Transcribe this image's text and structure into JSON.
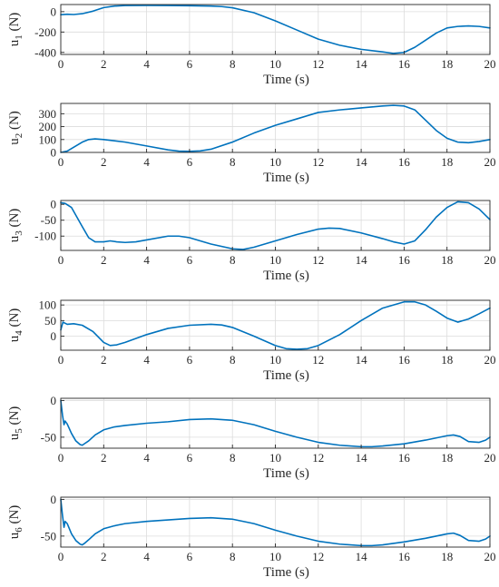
{
  "chart_data": [
    {
      "type": "line",
      "ylabel_main": "u",
      "ylabel_sub": "1",
      "ylabel_unit": " (N)",
      "xlabel": "Time (s)",
      "xlim": [
        0,
        20
      ],
      "ylim": [
        -420,
        70
      ],
      "xticks": [
        0,
        2,
        4,
        6,
        8,
        10,
        12,
        14,
        16,
        18,
        20
      ],
      "yticks": [
        -400,
        -200,
        0
      ],
      "x": [
        0,
        0.3,
        0.6,
        1.0,
        1.5,
        2.0,
        2.5,
        3.0,
        4.0,
        5.0,
        6.0,
        7.0,
        7.5,
        8.0,
        9.0,
        10.0,
        11.0,
        12.0,
        13.0,
        14.0,
        15.0,
        15.5,
        16.0,
        16.5,
        17.0,
        17.5,
        18.0,
        18.5,
        19.0,
        19.5,
        20.0
      ],
      "y": [
        -30,
        -25,
        -28,
        -20,
        5,
        40,
        55,
        60,
        62,
        60,
        58,
        55,
        50,
        38,
        -10,
        -90,
        -180,
        -270,
        -330,
        -370,
        -395,
        -410,
        -400,
        -350,
        -280,
        -210,
        -160,
        -145,
        -140,
        -145,
        -160
      ]
    },
    {
      "type": "line",
      "ylabel_main": "u",
      "ylabel_sub": "2",
      "ylabel_unit": " (N)",
      "xlabel": "Time (s)",
      "xlim": [
        0,
        20
      ],
      "ylim": [
        0,
        380
      ],
      "xticks": [
        0,
        2,
        4,
        6,
        8,
        10,
        12,
        14,
        16,
        18,
        20
      ],
      "yticks": [
        0,
        100,
        200,
        300
      ],
      "x": [
        0,
        0.3,
        0.6,
        1.0,
        1.3,
        1.6,
        2.0,
        2.5,
        3.0,
        4.0,
        5.0,
        5.5,
        6.0,
        6.5,
        7.0,
        8.0,
        9.0,
        10.0,
        11.0,
        12.0,
        13.0,
        14.0,
        15.0,
        15.5,
        16.0,
        16.5,
        17.0,
        17.5,
        18.0,
        18.5,
        19.0,
        19.5,
        20.0
      ],
      "y": [
        0,
        10,
        40,
        80,
        100,
        105,
        100,
        90,
        80,
        50,
        20,
        10,
        8,
        12,
        25,
        80,
        150,
        210,
        260,
        310,
        330,
        345,
        360,
        365,
        360,
        330,
        250,
        170,
        110,
        80,
        75,
        85,
        100
      ]
    },
    {
      "type": "line",
      "ylabel_main": "u",
      "ylabel_sub": "3",
      "ylabel_unit": " (N)",
      "xlabel": "Time (s)",
      "xlim": [
        0,
        20
      ],
      "ylim": [
        -145,
        12
      ],
      "xticks": [
        0,
        2,
        4,
        6,
        8,
        10,
        12,
        14,
        16,
        18,
        20
      ],
      "yticks": [
        -100,
        -50,
        0
      ],
      "x": [
        0,
        0.2,
        0.5,
        1.0,
        1.3,
        1.6,
        2.0,
        2.3,
        2.6,
        3.0,
        3.5,
        4.0,
        5.0,
        5.5,
        6.0,
        7.0,
        8.0,
        8.5,
        9.0,
        10.0,
        11.0,
        12.0,
        12.5,
        13.0,
        14.0,
        15.0,
        15.5,
        16.0,
        16.5,
        17.0,
        17.5,
        18.0,
        18.5,
        19.0,
        19.5,
        20.0
      ],
      "y": [
        5,
        3,
        -10,
        -70,
        -105,
        -118,
        -118,
        -115,
        -118,
        -120,
        -118,
        -112,
        -100,
        -100,
        -105,
        -125,
        -140,
        -142,
        -135,
        -115,
        -95,
        -78,
        -75,
        -76,
        -90,
        -108,
        -118,
        -125,
        -115,
        -80,
        -40,
        -10,
        8,
        5,
        -15,
        -48
      ]
    },
    {
      "type": "line",
      "ylabel_main": "u",
      "ylabel_sub": "4",
      "ylabel_unit": " (N)",
      "xlabel": "Time (s)",
      "xlim": [
        0,
        20
      ],
      "ylim": [
        -45,
        115
      ],
      "xticks": [
        0,
        2,
        4,
        6,
        8,
        10,
        12,
        14,
        16,
        18,
        20
      ],
      "yticks": [
        0,
        50,
        100
      ],
      "x": [
        0,
        0.1,
        0.3,
        0.6,
        1.0,
        1.5,
        2.0,
        2.3,
        2.6,
        3.0,
        4.0,
        5.0,
        6.0,
        7.0,
        7.5,
        8.0,
        9.0,
        10.0,
        10.5,
        11.0,
        11.5,
        12.0,
        13.0,
        14.0,
        15.0,
        16.0,
        16.5,
        17.0,
        17.5,
        18.0,
        18.5,
        19.0,
        19.5,
        20.0
      ],
      "y": [
        20,
        45,
        38,
        40,
        35,
        15,
        -20,
        -30,
        -28,
        -20,
        5,
        25,
        35,
        38,
        36,
        28,
        0,
        -30,
        -40,
        -42,
        -40,
        -30,
        5,
        50,
        90,
        110,
        110,
        100,
        80,
        58,
        45,
        55,
        72,
        90
      ]
    },
    {
      "type": "line",
      "ylabel_main": "u",
      "ylabel_sub": "5",
      "ylabel_unit": " (N)",
      "xlabel": "Time (s)",
      "xlim": [
        0,
        20
      ],
      "ylim": [
        -65,
        3
      ],
      "xticks": [
        0,
        2,
        4,
        6,
        8,
        10,
        12,
        14,
        16,
        18,
        20
      ],
      "yticks": [
        -50,
        0
      ],
      "x": [
        0,
        0.08,
        0.15,
        0.2,
        0.3,
        0.5,
        0.7,
        0.9,
        1.0,
        1.1,
        1.3,
        1.6,
        2.0,
        2.5,
        3.0,
        4.0,
        5.0,
        6.0,
        7.0,
        8.0,
        9.0,
        10.0,
        11.0,
        12.0,
        13.0,
        14.0,
        14.5,
        15.0,
        16.0,
        17.0,
        18.0,
        18.3,
        18.6,
        19.0,
        19.5,
        19.8,
        20.0
      ],
      "y": [
        0,
        -20,
        -33,
        -28,
        -32,
        -45,
        -55,
        -60,
        -61,
        -59,
        -55,
        -47,
        -40,
        -36,
        -34,
        -31,
        -29,
        -26,
        -25,
        -27,
        -33,
        -42,
        -50,
        -57,
        -61,
        -63,
        -63,
        -62,
        -59,
        -54,
        -48,
        -47,
        -49,
        -56,
        -57,
        -54,
        -50
      ]
    },
    {
      "type": "line",
      "ylabel_main": "u",
      "ylabel_sub": "6",
      "ylabel_unit": " (N)",
      "xlabel": "Time (s)",
      "xlim": [
        0,
        20
      ],
      "ylim": [
        -65,
        3
      ],
      "xticks": [
        0,
        2,
        4,
        6,
        8,
        10,
        12,
        14,
        16,
        18,
        20
      ],
      "yticks": [
        -50,
        0
      ],
      "x": [
        0,
        0.08,
        0.15,
        0.2,
        0.3,
        0.5,
        0.7,
        0.9,
        1.0,
        1.1,
        1.3,
        1.6,
        2.0,
        2.5,
        3.0,
        4.0,
        5.0,
        6.0,
        7.0,
        8.0,
        9.0,
        10.0,
        11.0,
        12.0,
        13.0,
        14.0,
        14.5,
        15.0,
        16.0,
        17.0,
        18.0,
        18.3,
        18.6,
        19.0,
        19.5,
        19.8,
        20.0
      ],
      "y": [
        0,
        -22,
        -38,
        -30,
        -33,
        -47,
        -56,
        -61,
        -62,
        -60,
        -55,
        -47,
        -40,
        -36,
        -33,
        -30,
        -28,
        -26,
        -25,
        -27,
        -33,
        -42,
        -50,
        -57,
        -61,
        -63,
        -63,
        -62,
        -58,
        -53,
        -47,
        -46,
        -49,
        -56,
        -57,
        -54,
        -50
      ]
    }
  ],
  "style": {
    "line_color": "#0072bd"
  }
}
